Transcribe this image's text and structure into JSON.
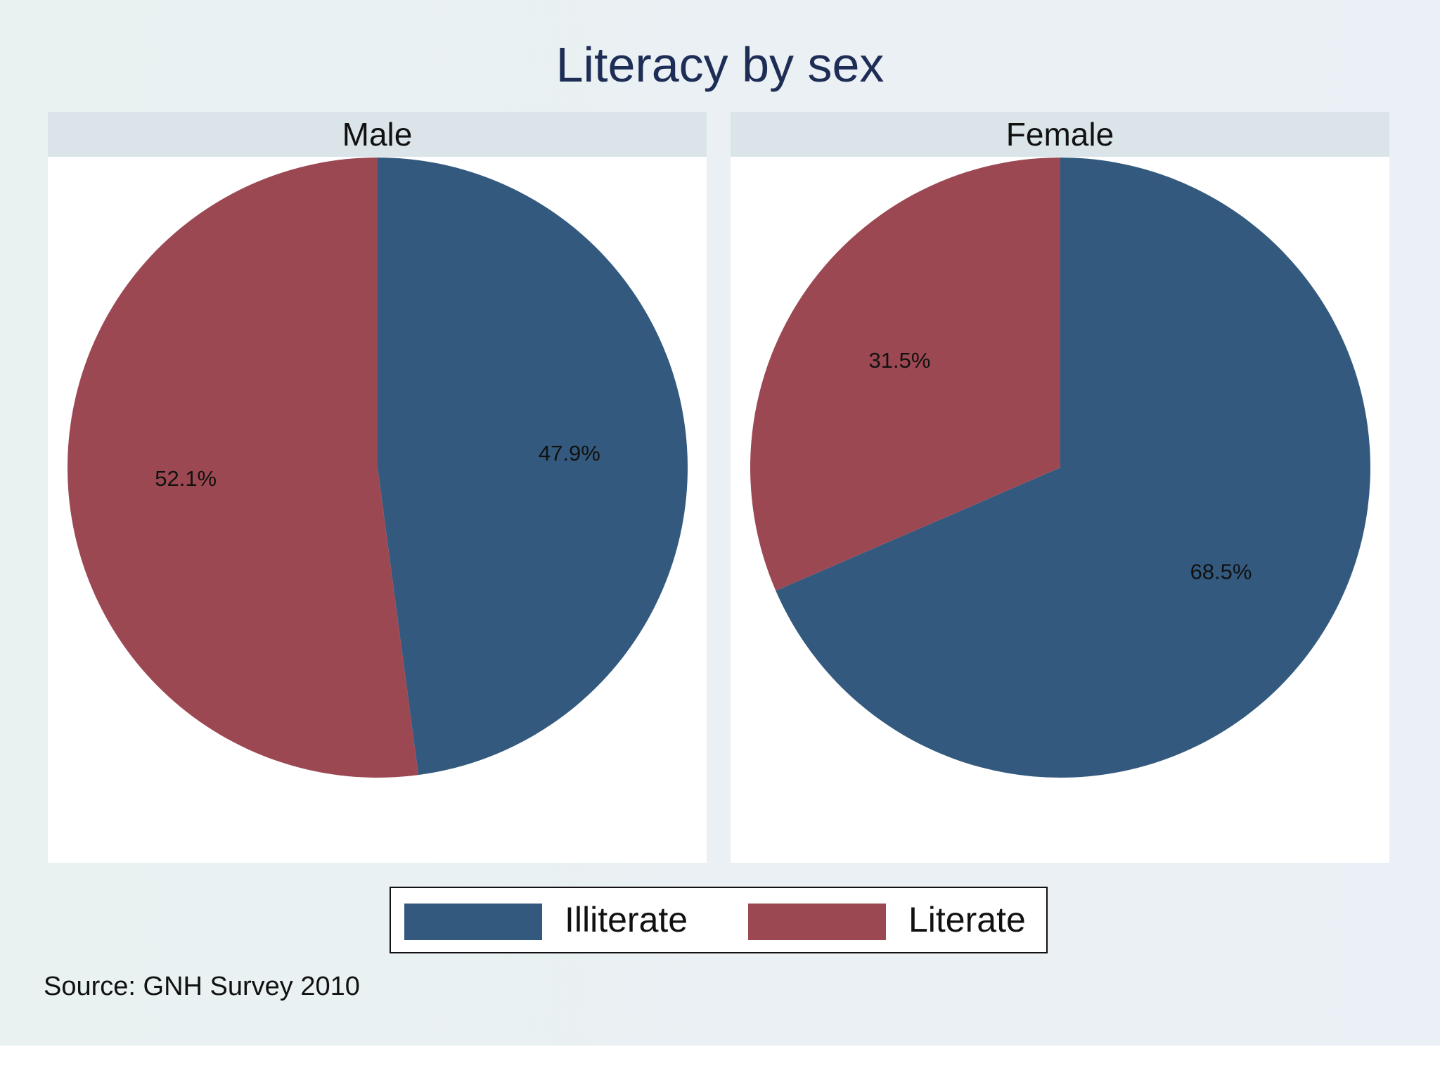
{
  "chart_data": [
    {
      "type": "pie",
      "title": "Literacy by sex",
      "subtitle": "Male",
      "categories": [
        "Illiterate",
        "Literate"
      ],
      "values": [
        47.9,
        52.1
      ],
      "labels": [
        "47.9%",
        "52.1%"
      ],
      "colors": [
        "#335a7e",
        "#9c4852"
      ],
      "legend": "bottom-center",
      "note": "Source: GNH Survey 2010"
    },
    {
      "type": "pie",
      "title": "Literacy by sex",
      "subtitle": "Female",
      "categories": [
        "Illiterate",
        "Literate"
      ],
      "values": [
        68.5,
        31.5
      ],
      "labels": [
        "68.5%",
        "31.5%"
      ],
      "colors": [
        "#335a7e",
        "#9c4852"
      ],
      "legend": "bottom-center",
      "note": "Source: GNH Survey 2010"
    }
  ],
  "title": "Literacy by sex",
  "panels": [
    {
      "header": "Male"
    },
    {
      "header": "Female"
    }
  ],
  "legend": {
    "items": [
      {
        "label": "Illiterate",
        "color": "#335a7e"
      },
      {
        "label": "Literate",
        "color": "#9c4852"
      }
    ]
  },
  "source": "Source: GNH Survey 2010"
}
